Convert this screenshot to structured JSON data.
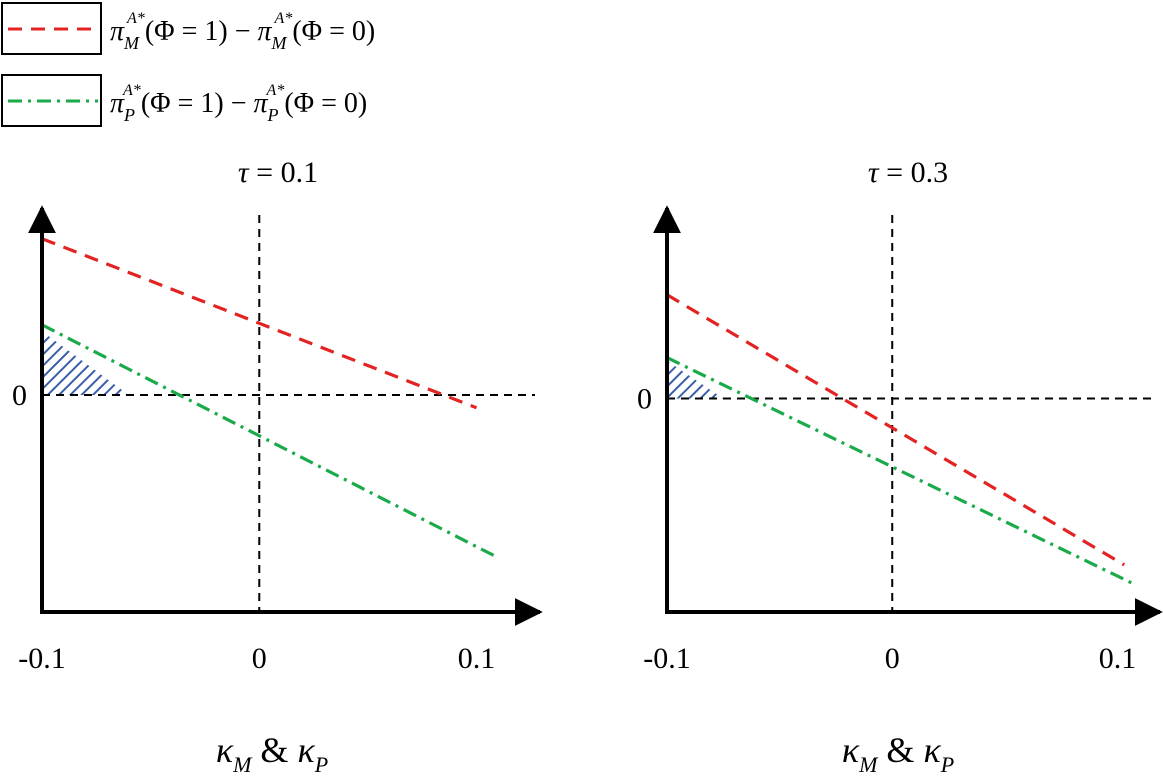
{
  "legend": {
    "entries": [
      {
        "id": "M",
        "color": "#e32222",
        "dash": "dashed",
        "text": {
          "pi": "π",
          "sub": "M",
          "sup": "A*",
          "one": "(Φ = 1) − ",
          "zero": "(Φ = 0)"
        }
      },
      {
        "id": "P",
        "color": "#1aaa4a",
        "dash": "dash-dot",
        "text": {
          "pi": "π",
          "sub": "P",
          "sup": "A*",
          "one": "(Φ = 1) − ",
          "zero": "(Φ = 0)"
        }
      }
    ]
  },
  "colors": {
    "hatch": "#3a5fa8",
    "axis": "#000000"
  },
  "chart_data": [
    {
      "type": "line",
      "title": "τ = 0.1",
      "title_parts": {
        "sym": "τ",
        "rest": " = 0.1"
      },
      "xlabel_parts": {
        "k1": "κ",
        "s1": "M",
        "amp": " & ",
        "k2": "κ",
        "s2": "P"
      },
      "x_ticks": [
        {
          "v": -0.1,
          "label": "-0.1"
        },
        {
          "v": 0,
          "label": "0"
        },
        {
          "v": 0.1,
          "label": "0.1"
        }
      ],
      "y_ticks": [
        {
          "v": 0,
          "label": "0"
        }
      ],
      "xlim": [
        -0.1,
        0.12
      ],
      "ylim": [
        -3.4,
        2.9
      ],
      "series": [
        {
          "ref": "M",
          "x": [
            -0.1,
            0.1
          ],
          "y": [
            2.45,
            -0.2
          ]
        },
        {
          "ref": "P",
          "x": [
            -0.1,
            0.11
          ],
          "y": [
            1.1,
            -2.55
          ]
        }
      ],
      "shaded_region": {
        "ref": "P",
        "x_from": -0.1,
        "y_from": 1.0,
        "x_to": -0.06,
        "y_to": 0.0
      }
    },
    {
      "type": "line",
      "title": "τ = 0.3",
      "title_parts": {
        "sym": "τ",
        "rest": " = 0.3"
      },
      "xlabel_parts": {
        "k1": "κ",
        "s1": "M",
        "amp": " & ",
        "k2": "κ",
        "s2": "P"
      },
      "x_ticks": [
        {
          "v": -0.1,
          "label": "-0.1"
        },
        {
          "v": 0,
          "label": "0"
        },
        {
          "v": 0.1,
          "label": "0.1"
        }
      ],
      "y_ticks": [
        {
          "v": 0,
          "label": "0"
        }
      ],
      "xlim": [
        -0.1,
        0.11
      ],
      "ylim": [
        -3.4,
        3.0
      ],
      "series": [
        {
          "ref": "M",
          "x": [
            -0.1,
            0.103
          ],
          "y": [
            1.65,
            -2.65
          ]
        },
        {
          "ref": "P",
          "x": [
            -0.1,
            0.107
          ],
          "y": [
            0.65,
            -2.95
          ]
        }
      ],
      "shaded_region": {
        "ref": "P",
        "x_from": -0.1,
        "y_from": 0.6,
        "x_to": -0.075,
        "y_to": 0.0
      }
    }
  ]
}
